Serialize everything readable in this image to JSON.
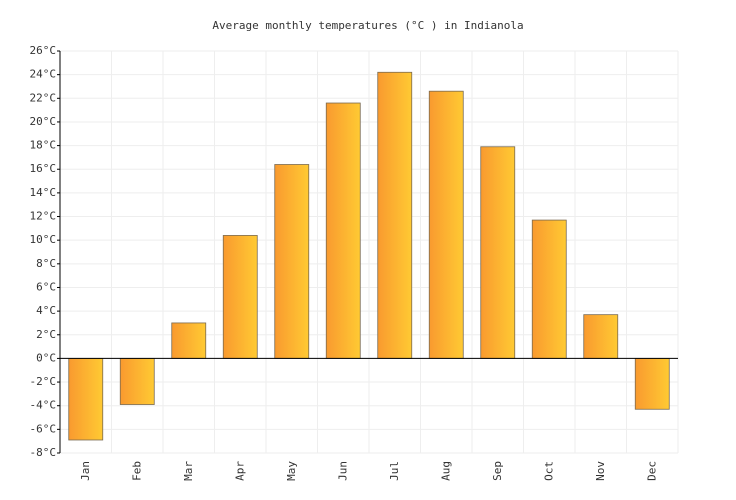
{
  "chart_data": {
    "type": "bar",
    "title": "Average monthly temperatures (°C ) in Indianola",
    "categories": [
      "Jan",
      "Feb",
      "Mar",
      "Apr",
      "May",
      "Jun",
      "Jul",
      "Aug",
      "Sep",
      "Oct",
      "Nov",
      "Dec"
    ],
    "values": [
      -6.9,
      -3.9,
      3.0,
      10.4,
      16.4,
      21.6,
      24.2,
      22.6,
      17.9,
      11.7,
      3.7,
      -4.3
    ],
    "color": "#ffb833",
    "ylim": [
      -8,
      26
    ],
    "yticks": [
      {
        "value": -8,
        "label": "-8°C"
      },
      {
        "value": -6,
        "label": "-6°C"
      },
      {
        "value": -4,
        "label": "-4°C"
      },
      {
        "value": -2,
        "label": "-2°C"
      },
      {
        "value": 0,
        "label": "0°C"
      },
      {
        "value": 2,
        "label": "2°C"
      },
      {
        "value": 4,
        "label": "4°C"
      },
      {
        "value": 6,
        "label": "6°C"
      },
      {
        "value": 8,
        "label": "8°C"
      },
      {
        "value": 10,
        "label": "10°C"
      },
      {
        "value": 12,
        "label": "12°C"
      },
      {
        "value": 14,
        "label": "14°C"
      },
      {
        "value": 16,
        "label": "16°C"
      },
      {
        "value": 18,
        "label": "18°C"
      },
      {
        "value": 20,
        "label": "20°C"
      },
      {
        "value": 22,
        "label": "22°C"
      },
      {
        "value": 24,
        "label": "24°C"
      },
      {
        "value": 26,
        "label": "26°C"
      }
    ],
    "grid": true
  }
}
